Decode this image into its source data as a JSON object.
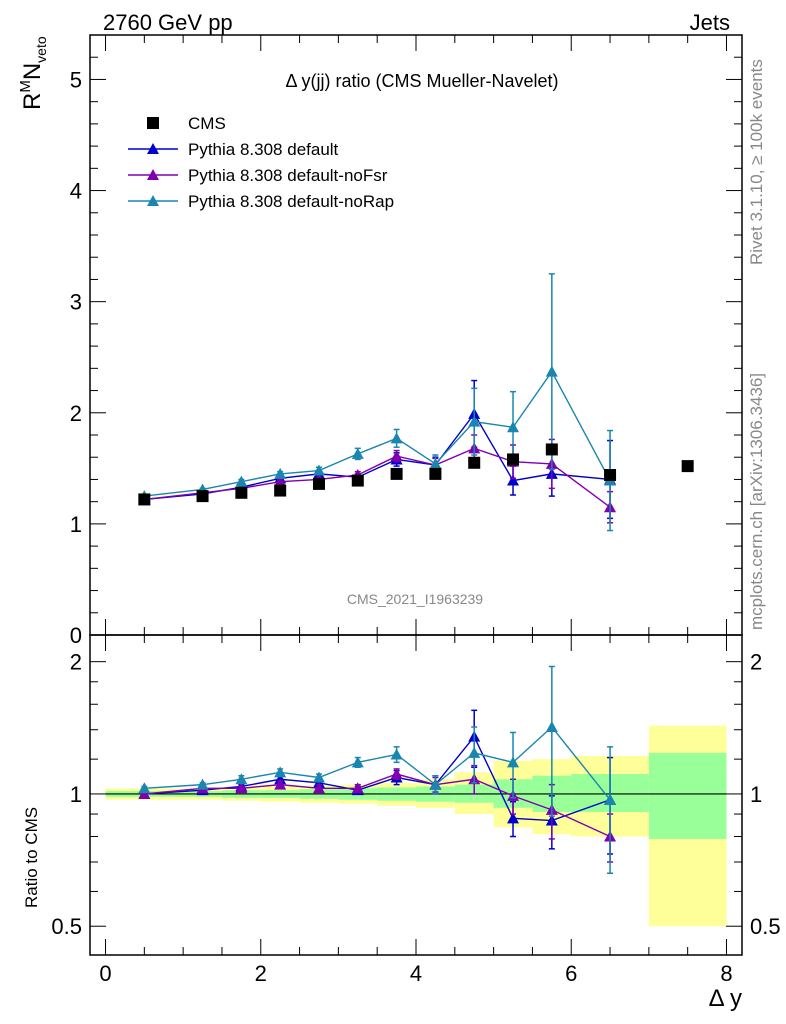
{
  "header": {
    "left_label": "2760 GeV pp",
    "right_label": "Jets"
  },
  "side": {
    "rivet_label": "Rivet 3.1.10, ≥ 100k events",
    "mcplots_label": "mcplots.cern.ch [arXiv:1306.3436]"
  },
  "chart_data": [
    {
      "type": "scatter",
      "panel": "main",
      "title": "Δ y(jj) ratio (CMS Mueller-Navelet)",
      "ylabel": "R^M N_veto",
      "ylabel_parts": {
        "base1": "R",
        "sup": "M",
        "base2": "N",
        "sub": "veto"
      },
      "watermark": "CMS_2021_I1963239",
      "xlim": [
        -0.2,
        8.2
      ],
      "ylim": [
        0,
        5.4
      ],
      "y_ticks": [
        1,
        2,
        3,
        4,
        5
      ],
      "y_tick_labels": [
        "1",
        "2",
        "3",
        "4",
        "5"
      ],
      "y_zero_label": "0",
      "legend_position": "top-left",
      "series": [
        {
          "name": "CMS",
          "marker": "square",
          "color": "#000000",
          "x": [
            0.5,
            1.25,
            1.75,
            2.25,
            2.75,
            3.25,
            3.75,
            4.25,
            4.75,
            5.25,
            5.75,
            6.5,
            7.5
          ],
          "y": [
            1.22,
            1.25,
            1.28,
            1.3,
            1.36,
            1.39,
            1.45,
            1.45,
            1.55,
            1.58,
            1.67,
            1.44,
            1.52
          ]
        },
        {
          "name": "Pythia 8.308 default",
          "marker": "triangle",
          "color": "#0000cc",
          "x": [
            0.5,
            1.25,
            1.75,
            2.25,
            2.75,
            3.25,
            3.75,
            4.25,
            4.75,
            5.25,
            5.75,
            6.5
          ],
          "y": [
            1.22,
            1.27,
            1.33,
            1.41,
            1.45,
            1.42,
            1.58,
            1.53,
            1.99,
            1.39,
            1.45,
            1.4
          ],
          "err": [
            0.01,
            0.01,
            0.01,
            0.02,
            0.03,
            0.03,
            0.06,
            0.07,
            0.3,
            0.13,
            0.2,
            0.35
          ]
        },
        {
          "name": "Pythia 8.308 default-noFsr",
          "marker": "triangle",
          "color": "#8000b0",
          "x": [
            0.5,
            1.25,
            1.75,
            2.25,
            2.75,
            3.25,
            3.75,
            4.25,
            4.75,
            5.25,
            5.75,
            6.5
          ],
          "y": [
            1.22,
            1.28,
            1.32,
            1.38,
            1.4,
            1.44,
            1.61,
            1.53,
            1.68,
            1.56,
            1.54,
            1.15
          ],
          "err": [
            0.01,
            0.01,
            0.01,
            0.02,
            0.02,
            0.03,
            0.05,
            0.06,
            0.12,
            0.15,
            0.22,
            0.14
          ]
        },
        {
          "name": "Pythia 8.308 default-noRap",
          "marker": "triangle",
          "color": "#1a86b0",
          "x": [
            0.5,
            1.25,
            1.75,
            2.25,
            2.75,
            3.25,
            3.75,
            4.25,
            4.75,
            5.25,
            5.75,
            6.5
          ],
          "y": [
            1.25,
            1.31,
            1.38,
            1.45,
            1.48,
            1.63,
            1.77,
            1.54,
            1.92,
            1.87,
            2.37,
            1.39
          ],
          "err": [
            0.01,
            0.01,
            0.02,
            0.02,
            0.03,
            0.05,
            0.08,
            0.08,
            0.3,
            0.32,
            0.88,
            0.45
          ]
        }
      ]
    },
    {
      "type": "scatter",
      "panel": "ratio",
      "ylabel": "Ratio to CMS",
      "xlabel": "Δ y",
      "xlim": [
        -0.2,
        8.2
      ],
      "ylim": [
        0.43,
        2.3
      ],
      "log_y": true,
      "x_ticks": [
        0,
        2,
        4,
        6,
        8
      ],
      "x_tick_labels": [
        "0",
        "2",
        "4",
        "6",
        "8"
      ],
      "y_ticks": [
        0.5,
        1,
        2
      ],
      "y_tick_labels": [
        "0.5",
        "1",
        "2"
      ],
      "reference_line": 1,
      "bands": {
        "edges": [
          0,
          0.9,
          1.5,
          2.0,
          2.5,
          3.0,
          3.5,
          4.0,
          4.5,
          5.0,
          5.5,
          6.0,
          7.0,
          8.0
        ],
        "yellow_lo": [
          0.97,
          0.97,
          0.965,
          0.96,
          0.955,
          0.95,
          0.94,
          0.93,
          0.9,
          0.84,
          0.81,
          0.8,
          0.5
        ],
        "yellow_hi": [
          1.03,
          1.03,
          1.035,
          1.04,
          1.045,
          1.05,
          1.06,
          1.08,
          1.12,
          1.19,
          1.2,
          1.22,
          1.43
        ],
        "green_lo": [
          0.985,
          0.985,
          0.98,
          0.98,
          0.975,
          0.97,
          0.965,
          0.96,
          0.955,
          0.93,
          0.91,
          0.91,
          0.79
        ],
        "green_hi": [
          1.015,
          1.015,
          1.02,
          1.02,
          1.025,
          1.03,
          1.035,
          1.04,
          1.05,
          1.08,
          1.1,
          1.11,
          1.24
        ]
      },
      "series": [
        {
          "name": "Pythia 8.308 default",
          "color": "#0000cc",
          "x": [
            0.5,
            1.25,
            1.75,
            2.25,
            2.75,
            3.25,
            3.75,
            4.25,
            4.75,
            5.25,
            5.75,
            6.5
          ],
          "y": [
            1.0,
            1.02,
            1.04,
            1.08,
            1.06,
            1.02,
            1.09,
            1.05,
            1.35,
            0.88,
            0.87,
            0.97
          ],
          "err": [
            0.01,
            0.01,
            0.01,
            0.02,
            0.02,
            0.02,
            0.04,
            0.05,
            0.2,
            0.08,
            0.12,
            0.24
          ]
        },
        {
          "name": "Pythia 8.308 default-noFsr",
          "color": "#8000b0",
          "x": [
            0.5,
            1.25,
            1.75,
            2.25,
            2.75,
            3.25,
            3.75,
            4.25,
            4.75,
            5.25,
            5.75,
            6.5
          ],
          "y": [
            1.0,
            1.03,
            1.03,
            1.05,
            1.03,
            1.03,
            1.11,
            1.05,
            1.08,
            0.99,
            0.92,
            0.8
          ],
          "err": [
            0.01,
            0.01,
            0.01,
            0.02,
            0.02,
            0.02,
            0.03,
            0.04,
            0.08,
            0.09,
            0.13,
            0.1
          ]
        },
        {
          "name": "Pythia 8.308 default-noRap",
          "color": "#1a86b0",
          "x": [
            0.5,
            1.25,
            1.75,
            2.25,
            2.75,
            3.25,
            3.75,
            4.25,
            4.75,
            5.25,
            5.75,
            6.5
          ],
          "y": [
            1.03,
            1.05,
            1.08,
            1.12,
            1.09,
            1.18,
            1.23,
            1.05,
            1.24,
            1.18,
            1.42,
            0.97
          ],
          "err": [
            0.01,
            0.01,
            0.02,
            0.02,
            0.02,
            0.03,
            0.05,
            0.05,
            0.18,
            0.2,
            0.53,
            0.31
          ]
        }
      ]
    }
  ]
}
